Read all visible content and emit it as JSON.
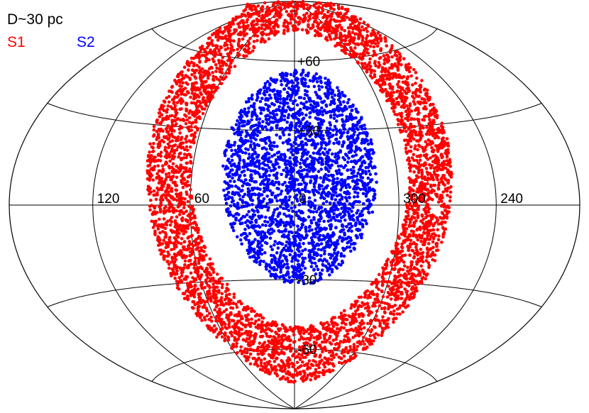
{
  "chart_data": {
    "type": "scatter",
    "projection": "aitoff-hammer sky map (galactic longitude / latitude)",
    "title": "D~30 pc",
    "legend_placement": "top-left",
    "grid": true,
    "x_range_deg": [
      -180,
      180
    ],
    "y_range_deg": [
      -90,
      90
    ],
    "longitude_tick_labels": [
      {
        "lon": 240,
        "label": "240"
      },
      {
        "lon": 300,
        "label": "300"
      },
      {
        "lon": 0,
        "label": "0"
      },
      {
        "lon": 60,
        "label": "60"
      },
      {
        "lon": 120,
        "label": "120"
      }
    ],
    "latitude_tick_labels": [
      {
        "lat": 60,
        "label": "+60"
      },
      {
        "lat": 30,
        "label": "+30"
      },
      {
        "lat": -30,
        "label": "-30"
      },
      {
        "lat": -60,
        "label": "-60"
      }
    ],
    "series": [
      {
        "name": "S1",
        "color": "#ff0000",
        "distribution": "ring of points at ~62–88° angular distance from (l=-3°, b=+12°)",
        "center": {
          "lon": -3,
          "lat": 12
        },
        "ring_min_deg": 62,
        "ring_max_deg": 88,
        "point_count": 4500
      },
      {
        "name": "S2",
        "color": "#0000ff",
        "distribution": "disc of points within ~44° of (l=-3°, b=+12°)",
        "center": {
          "lon": -3,
          "lat": 12
        },
        "ring_min_deg": 0,
        "ring_max_deg": 44,
        "point_count": 2600
      }
    ]
  }
}
